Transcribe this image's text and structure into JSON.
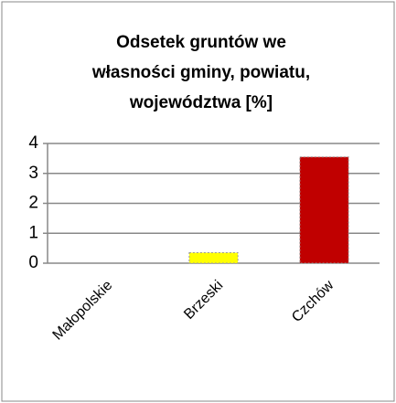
{
  "chart_data": {
    "type": "bar",
    "title": "Odsetek gruntów we własności gminy, powiatu, województwa [%]",
    "categories": [
      "Małopolskie",
      "Brzeski",
      "Czchów"
    ],
    "values": [
      0,
      0.35,
      3.55
    ],
    "colors": [
      "#ffff00",
      "#ffff00",
      "#c00000"
    ],
    "ylim": [
      0,
      4
    ],
    "yticks": [
      0,
      1,
      2,
      3,
      4
    ],
    "grid": true
  }
}
